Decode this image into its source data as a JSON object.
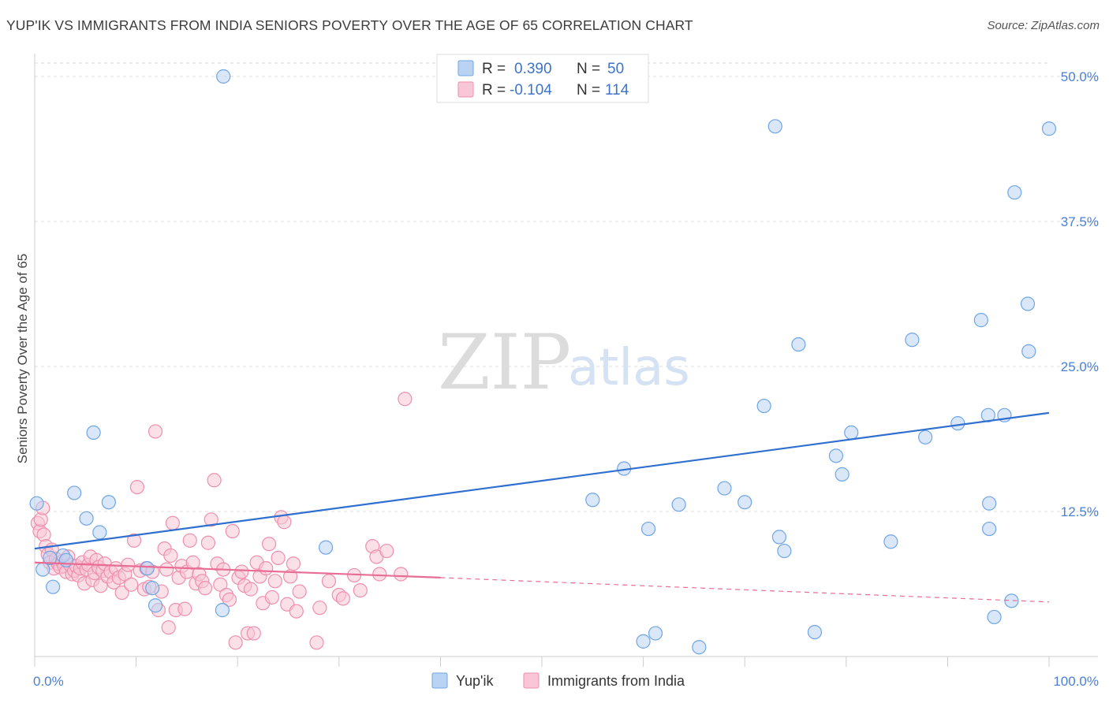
{
  "title": "YUP'IK VS IMMIGRANTS FROM INDIA SENIORS POVERTY OVER THE AGE OF 65 CORRELATION CHART",
  "source": "Source: ZipAtlas.com",
  "watermark": {
    "zip": "ZIP",
    "atlas": "atlas"
  },
  "colors": {
    "yupik": "#6fa6e6",
    "yupik_fill": "#b9d3f3",
    "yupik_line": "#2f6fcf",
    "india": "#ef8fae",
    "india_fill": "#f8c6d6",
    "india_line": "#e86d95",
    "axis_label": "#4a7fd4",
    "grid": "#dddddd"
  },
  "legend_top": {
    "rows": [
      {
        "r_label": "R = ",
        "r_value": "0.390",
        "n_label": "N = ",
        "n_value": "50"
      },
      {
        "r_label": "R = ",
        "r_value": "-0.104",
        "n_label": "N = ",
        "n_value": "114"
      }
    ]
  },
  "legend_bottom": [
    "Yup'ik",
    "Immigrants from India"
  ],
  "chart_data": {
    "type": "scatter",
    "title": "YUP'IK VS IMMIGRANTS FROM INDIA SENIORS POVERTY OVER THE AGE OF 65 CORRELATION CHART",
    "xlabel": "",
    "ylabel": "Seniors Poverty Over the Age of 65",
    "xlim": [
      0,
      100
    ],
    "ylim": [
      0,
      52
    ],
    "x_tick_labels": [
      "0.0%",
      "100.0%"
    ],
    "y_ticks": [
      12.5,
      25.0,
      37.5,
      50.0
    ],
    "y_tick_labels": [
      "12.5%",
      "25.0%",
      "37.5%",
      "50.0%"
    ],
    "grid": true,
    "legend_position": "top-center",
    "series": [
      {
        "name": "Yup'ik",
        "r": 0.39,
        "n": 50,
        "trend": {
          "x": [
            0,
            100
          ],
          "y": [
            9.3,
            21.0
          ]
        },
        "points": [
          [
            0.2,
            13.2
          ],
          [
            0.8,
            7.5
          ],
          [
            1.5,
            8.5
          ],
          [
            1.8,
            6.0
          ],
          [
            2.8,
            8.7
          ],
          [
            3.1,
            8.3
          ],
          [
            3.9,
            14.1
          ],
          [
            5.1,
            11.9
          ],
          [
            5.8,
            19.3
          ],
          [
            6.4,
            10.7
          ],
          [
            7.3,
            13.3
          ],
          [
            11.1,
            7.6
          ],
          [
            11.6,
            5.9
          ],
          [
            11.9,
            4.4
          ],
          [
            18.5,
            4.0
          ],
          [
            18.6,
            50.0
          ],
          [
            28.7,
            9.4
          ],
          [
            55.0,
            13.5
          ],
          [
            58.1,
            16.2
          ],
          [
            60.0,
            1.3
          ],
          [
            60.5,
            11.0
          ],
          [
            61.2,
            2.0
          ],
          [
            63.5,
            13.1
          ],
          [
            65.5,
            0.8
          ],
          [
            68.0,
            14.5
          ],
          [
            70.0,
            13.3
          ],
          [
            71.9,
            21.6
          ],
          [
            73.0,
            45.7
          ],
          [
            73.4,
            10.3
          ],
          [
            73.9,
            9.1
          ],
          [
            75.3,
            26.9
          ],
          [
            76.9,
            2.1
          ],
          [
            79.0,
            17.3
          ],
          [
            79.6,
            15.7
          ],
          [
            80.5,
            19.3
          ],
          [
            84.4,
            9.9
          ],
          [
            86.5,
            27.3
          ],
          [
            87.8,
            18.9
          ],
          [
            91.0,
            20.1
          ],
          [
            93.3,
            29.0
          ],
          [
            94.0,
            20.8
          ],
          [
            94.1,
            13.2
          ],
          [
            94.1,
            11.0
          ],
          [
            94.6,
            3.4
          ],
          [
            95.6,
            20.8
          ],
          [
            96.3,
            4.8
          ],
          [
            96.6,
            40.0
          ],
          [
            97.9,
            30.4
          ],
          [
            98.0,
            26.3
          ],
          [
            100.0,
            45.5
          ]
        ]
      },
      {
        "name": "Immigrants from India",
        "r": -0.104,
        "n": 114,
        "trend": {
          "x": [
            0,
            40
          ],
          "y": [
            8.1,
            6.8
          ]
        },
        "trend_extended": {
          "x": [
            40,
            100
          ],
          "y": [
            6.8,
            4.7
          ]
        },
        "points": [
          [
            0.3,
            11.5
          ],
          [
            0.5,
            10.8
          ],
          [
            0.6,
            11.8
          ],
          [
            0.8,
            12.8
          ],
          [
            0.9,
            10.5
          ],
          [
            1.1,
            9.5
          ],
          [
            1.3,
            8.8
          ],
          [
            1.5,
            8.1
          ],
          [
            1.7,
            9.2
          ],
          [
            1.9,
            7.6
          ],
          [
            2.1,
            8.4
          ],
          [
            2.3,
            8.0
          ],
          [
            2.5,
            7.7
          ],
          [
            2.7,
            8.2
          ],
          [
            2.9,
            7.8
          ],
          [
            3.1,
            7.3
          ],
          [
            3.3,
            8.6
          ],
          [
            3.5,
            7.9
          ],
          [
            3.7,
            7.1
          ],
          [
            3.9,
            7.4
          ],
          [
            4.1,
            7.8
          ],
          [
            4.3,
            7.0
          ],
          [
            4.5,
            7.6
          ],
          [
            4.7,
            8.1
          ],
          [
            4.9,
            6.3
          ],
          [
            5.1,
            7.5
          ],
          [
            5.3,
            7.9
          ],
          [
            5.5,
            8.6
          ],
          [
            5.7,
            6.6
          ],
          [
            5.9,
            7.2
          ],
          [
            6.1,
            8.3
          ],
          [
            6.3,
            7.7
          ],
          [
            6.5,
            6.1
          ],
          [
            6.7,
            7.4
          ],
          [
            6.9,
            8.0
          ],
          [
            7.2,
            6.9
          ],
          [
            7.5,
            7.3
          ],
          [
            7.8,
            6.4
          ],
          [
            8.0,
            7.6
          ],
          [
            8.3,
            6.8
          ],
          [
            8.6,
            5.5
          ],
          [
            8.9,
            7.1
          ],
          [
            9.2,
            7.9
          ],
          [
            9.5,
            6.2
          ],
          [
            9.8,
            10.0
          ],
          [
            10.1,
            14.6
          ],
          [
            10.4,
            7.4
          ],
          [
            10.8,
            5.8
          ],
          [
            11.0,
            7.6
          ],
          [
            11.3,
            6.0
          ],
          [
            11.6,
            7.3
          ],
          [
            11.9,
            19.4
          ],
          [
            12.2,
            4.0
          ],
          [
            12.5,
            5.6
          ],
          [
            12.8,
            9.3
          ],
          [
            13.0,
            7.5
          ],
          [
            13.2,
            2.5
          ],
          [
            13.4,
            8.7
          ],
          [
            13.6,
            11.5
          ],
          [
            13.9,
            4.0
          ],
          [
            14.2,
            6.8
          ],
          [
            14.5,
            7.8
          ],
          [
            14.8,
            4.1
          ],
          [
            15.0,
            7.3
          ],
          [
            15.3,
            10.0
          ],
          [
            15.6,
            8.1
          ],
          [
            15.9,
            6.3
          ],
          [
            16.2,
            7.1
          ],
          [
            16.5,
            6.5
          ],
          [
            16.8,
            5.9
          ],
          [
            17.1,
            9.8
          ],
          [
            17.4,
            11.8
          ],
          [
            17.7,
            15.2
          ],
          [
            18.0,
            8.0
          ],
          [
            18.3,
            6.2
          ],
          [
            18.6,
            7.5
          ],
          [
            18.9,
            5.3
          ],
          [
            19.2,
            4.9
          ],
          [
            19.5,
            10.8
          ],
          [
            19.8,
            1.2
          ],
          [
            20.1,
            6.8
          ],
          [
            20.4,
            7.3
          ],
          [
            20.7,
            6.1
          ],
          [
            21.0,
            2.0
          ],
          [
            21.3,
            5.8
          ],
          [
            21.6,
            2.0
          ],
          [
            21.9,
            8.1
          ],
          [
            22.2,
            6.9
          ],
          [
            22.5,
            4.6
          ],
          [
            22.8,
            7.6
          ],
          [
            23.1,
            9.7
          ],
          [
            23.4,
            5.1
          ],
          [
            23.7,
            6.5
          ],
          [
            24.0,
            8.5
          ],
          [
            24.3,
            12.0
          ],
          [
            24.6,
            11.6
          ],
          [
            24.9,
            4.5
          ],
          [
            25.2,
            6.9
          ],
          [
            25.5,
            8.0
          ],
          [
            25.8,
            3.9
          ],
          [
            26.1,
            5.6
          ],
          [
            27.8,
            1.2
          ],
          [
            28.1,
            4.2
          ],
          [
            29.0,
            6.5
          ],
          [
            30.0,
            5.3
          ],
          [
            30.4,
            5.0
          ],
          [
            31.5,
            7.0
          ],
          [
            32.1,
            5.7
          ],
          [
            33.3,
            9.5
          ],
          [
            33.7,
            8.6
          ],
          [
            34.0,
            7.1
          ],
          [
            34.7,
            9.1
          ],
          [
            36.1,
            7.1
          ],
          [
            36.5,
            22.2
          ]
        ]
      }
    ]
  }
}
